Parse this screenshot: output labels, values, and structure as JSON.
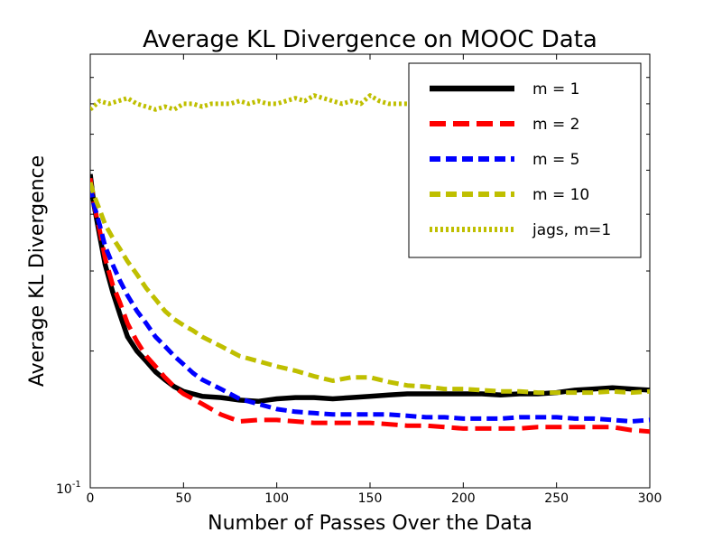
{
  "chart_data": {
    "type": "line",
    "title": "Average KL Divergence on MOOC Data",
    "xlabel": "Number of Passes Over the Data",
    "ylabel": "Average KL Divergence",
    "xlim": [
      0,
      300
    ],
    "ylim": [
      0.1,
      0.9
    ],
    "yscale": "log",
    "x_ticks": [
      0,
      50,
      100,
      150,
      200,
      250,
      300
    ],
    "y_major_tick_label": "10^-1",
    "grid": false,
    "legend_position": "top-right",
    "series": [
      {
        "name": "m = 1",
        "color": "#000000",
        "style": "solid",
        "x": [
          0,
          2,
          5,
          8,
          12,
          16,
          20,
          25,
          30,
          35,
          40,
          45,
          50,
          55,
          60,
          70,
          80,
          90,
          100,
          110,
          120,
          130,
          140,
          150,
          160,
          170,
          180,
          190,
          200,
          210,
          220,
          230,
          240,
          250,
          260,
          270,
          280,
          290,
          300
        ],
        "y": [
          0.49,
          0.42,
          0.36,
          0.31,
          0.27,
          0.24,
          0.215,
          0.2,
          0.19,
          0.18,
          0.173,
          0.167,
          0.163,
          0.161,
          0.159,
          0.158,
          0.156,
          0.155,
          0.157,
          0.158,
          0.158,
          0.157,
          0.158,
          0.159,
          0.16,
          0.161,
          0.161,
          0.161,
          0.161,
          0.161,
          0.16,
          0.161,
          0.161,
          0.162,
          0.164,
          0.165,
          0.166,
          0.165,
          0.164
        ]
      },
      {
        "name": "m = 2",
        "color": "#ff0000",
        "style": "dashed",
        "x": [
          0,
          2,
          5,
          8,
          12,
          16,
          20,
          25,
          30,
          35,
          40,
          45,
          50,
          55,
          60,
          70,
          80,
          90,
          100,
          110,
          120,
          130,
          140,
          150,
          160,
          170,
          180,
          190,
          200,
          210,
          220,
          230,
          240,
          250,
          260,
          270,
          280,
          290,
          300
        ],
        "y": [
          0.48,
          0.42,
          0.37,
          0.32,
          0.28,
          0.255,
          0.23,
          0.21,
          0.195,
          0.185,
          0.175,
          0.167,
          0.161,
          0.157,
          0.153,
          0.145,
          0.14,
          0.141,
          0.141,
          0.14,
          0.139,
          0.139,
          0.139,
          0.139,
          0.138,
          0.137,
          0.137,
          0.136,
          0.135,
          0.135,
          0.135,
          0.135,
          0.136,
          0.136,
          0.136,
          0.136,
          0.136,
          0.134,
          0.133
        ]
      },
      {
        "name": "m = 5",
        "color": "#0000ff",
        "style": "dashed",
        "x": [
          0,
          2,
          5,
          8,
          12,
          16,
          20,
          25,
          30,
          35,
          40,
          45,
          50,
          55,
          60,
          70,
          80,
          90,
          100,
          110,
          120,
          130,
          140,
          150,
          160,
          170,
          180,
          190,
          200,
          210,
          220,
          230,
          240,
          250,
          260,
          270,
          280,
          290,
          300
        ],
        "y": [
          0.46,
          0.42,
          0.38,
          0.34,
          0.31,
          0.285,
          0.265,
          0.245,
          0.23,
          0.215,
          0.205,
          0.195,
          0.187,
          0.179,
          0.173,
          0.165,
          0.157,
          0.153,
          0.149,
          0.147,
          0.146,
          0.145,
          0.145,
          0.145,
          0.145,
          0.144,
          0.143,
          0.143,
          0.142,
          0.142,
          0.142,
          0.143,
          0.143,
          0.143,
          0.142,
          0.142,
          0.141,
          0.14,
          0.141
        ]
      },
      {
        "name": "m = 10",
        "color": "#bfbf00",
        "style": "dashed",
        "x": [
          0,
          2,
          5,
          8,
          12,
          16,
          20,
          25,
          30,
          35,
          40,
          45,
          50,
          55,
          60,
          70,
          80,
          90,
          100,
          110,
          120,
          130,
          140,
          150,
          160,
          170,
          180,
          190,
          200,
          210,
          220,
          230,
          240,
          250,
          260,
          270,
          280,
          290,
          300
        ],
        "y": [
          0.47,
          0.44,
          0.41,
          0.38,
          0.355,
          0.335,
          0.315,
          0.295,
          0.275,
          0.26,
          0.245,
          0.235,
          0.228,
          0.222,
          0.215,
          0.205,
          0.195,
          0.19,
          0.185,
          0.181,
          0.176,
          0.172,
          0.175,
          0.175,
          0.171,
          0.168,
          0.167,
          0.165,
          0.165,
          0.164,
          0.163,
          0.163,
          0.162,
          0.162,
          0.162,
          0.162,
          0.163,
          0.162,
          0.163
        ]
      },
      {
        "name": "jags, m=1",
        "color": "#bfbf00",
        "style": "dotted",
        "x": [
          0,
          5,
          10,
          15,
          20,
          25,
          30,
          35,
          40,
          45,
          50,
          55,
          60,
          65,
          70,
          75,
          80,
          85,
          90,
          95,
          100,
          105,
          110,
          115,
          120,
          125,
          130,
          135,
          140,
          145,
          150,
          155,
          160,
          165,
          170
        ],
        "y": [
          0.68,
          0.71,
          0.7,
          0.71,
          0.72,
          0.7,
          0.69,
          0.68,
          0.69,
          0.68,
          0.7,
          0.7,
          0.69,
          0.7,
          0.7,
          0.7,
          0.71,
          0.7,
          0.71,
          0.7,
          0.7,
          0.71,
          0.72,
          0.71,
          0.73,
          0.72,
          0.71,
          0.7,
          0.71,
          0.7,
          0.73,
          0.71,
          0.7,
          0.7,
          0.7
        ]
      }
    ]
  }
}
